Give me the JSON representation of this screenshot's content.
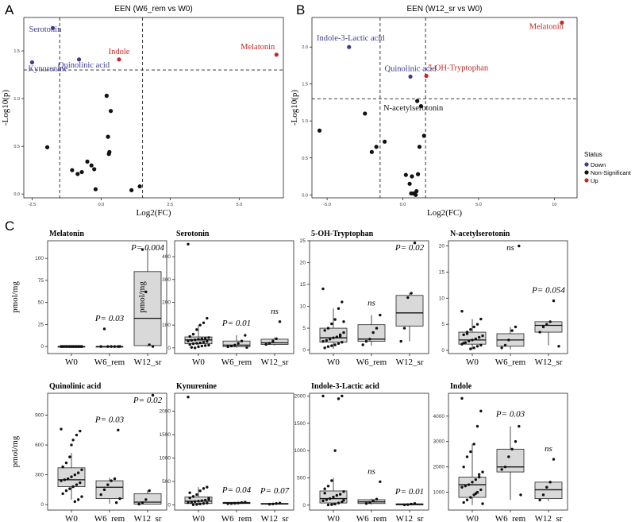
{
  "panel_letters": [
    "A",
    "B",
    "C"
  ],
  "colors": {
    "down": "#3b3b8f",
    "up": "#c62828",
    "ns": "#111111",
    "box_fill": "#d9d9d9"
  },
  "volcano_axes": {
    "xlabel": "Log2(FC)",
    "ylabel": "-Log10(p)"
  },
  "legend": {
    "title": "Status",
    "items": [
      {
        "label": "Down",
        "color": "#3b3b8f"
      },
      {
        "label": "Non-Significant",
        "color": "#111111"
      },
      {
        "label": "Up",
        "color": "#c62828"
      }
    ]
  },
  "boxplot_axes": {
    "ylabel": "pmol/mg",
    "groups": [
      "W0",
      "W6_rem",
      "W12_sr"
    ]
  },
  "chart_data": [
    {
      "type": "scatter",
      "title": "EEN (W6_rem vs W0)",
      "xlabel": "Log2(FC)",
      "ylabel": "-Log10(p)",
      "xlim": [
        -2.8,
        6.6
      ],
      "ylim": [
        -0.04,
        1.85
      ],
      "xticks": [
        {
          "v": -2.5,
          "t": "-2.5"
        },
        {
          "v": 0,
          "t": "0.0"
        },
        {
          "v": 2.5,
          "t": "2.5"
        },
        {
          "v": 5,
          "t": "5.0"
        }
      ],
      "yticks": [
        {
          "v": 0,
          "t": "0.0"
        },
        {
          "v": 0.5,
          "t": "0.5"
        },
        {
          "v": 1.0,
          "t": "1.0"
        },
        {
          "v": 1.5,
          "t": "1.5"
        }
      ],
      "hline": 1.3,
      "vlines": [
        -1.5,
        1.5
      ],
      "points": [
        {
          "x": -1.75,
          "y": 1.74,
          "s": "down",
          "label": "Serotonin"
        },
        {
          "x": -2.5,
          "y": 1.38,
          "s": "down",
          "label": "Kynurenine"
        },
        {
          "x": -0.8,
          "y": 1.41,
          "s": "down",
          "label": "Quinolinic acid"
        },
        {
          "x": 0.65,
          "y": 1.41,
          "s": "up",
          "label": "Indole"
        },
        {
          "x": 6.35,
          "y": 1.46,
          "s": "up",
          "label": "Melatonin"
        },
        {
          "x": -1.95,
          "y": 0.49,
          "s": "ns"
        },
        {
          "x": -1.05,
          "y": 0.25,
          "s": "ns"
        },
        {
          "x": -0.85,
          "y": 0.21,
          "s": "ns"
        },
        {
          "x": -0.7,
          "y": 0.23,
          "s": "ns"
        },
        {
          "x": -0.5,
          "y": 0.34,
          "s": "ns"
        },
        {
          "x": -0.35,
          "y": 0.3,
          "s": "ns"
        },
        {
          "x": -0.25,
          "y": 0.26,
          "s": "ns"
        },
        {
          "x": -0.2,
          "y": 0.05,
          "s": "ns"
        },
        {
          "x": 0.2,
          "y": 1.03,
          "s": "ns"
        },
        {
          "x": 0.35,
          "y": 0.87,
          "s": "ns"
        },
        {
          "x": 0.25,
          "y": 0.6,
          "s": "ns"
        },
        {
          "x": 0.3,
          "y": 0.44,
          "s": "ns"
        },
        {
          "x": 0.28,
          "y": 0.42,
          "s": "ns"
        },
        {
          "x": 1.1,
          "y": 0.04,
          "s": "ns"
        },
        {
          "x": 1.4,
          "y": 0.08,
          "s": "ns"
        }
      ]
    },
    {
      "type": "scatter",
      "title": "EEN (W12_sr vs W0)",
      "xlabel": "Log2(FC)",
      "ylabel": "-Log10(p)",
      "xlim": [
        -6,
        11.5
      ],
      "ylim": [
        -0.04,
        2.4
      ],
      "xticks": [
        {
          "v": -5,
          "t": "-5.0"
        },
        {
          "v": 0,
          "t": "0.0"
        },
        {
          "v": 5,
          "t": "5.0"
        },
        {
          "v": 10,
          "t": "10"
        }
      ],
      "yticks": [
        {
          "v": 0,
          "t": "0.0"
        },
        {
          "v": 0.5,
          "t": "0.5"
        },
        {
          "v": 1.0,
          "t": "1.0"
        },
        {
          "v": 1.5,
          "t": "1.5"
        },
        {
          "v": 2.0,
          "t": "2.0"
        }
      ],
      "hline": 1.3,
      "vlines": [
        -1.5,
        1.5
      ],
      "points": [
        {
          "x": -3.55,
          "y": 2.0,
          "s": "down",
          "label": "Indole-3-Lactic acid"
        },
        {
          "x": 0.5,
          "y": 1.6,
          "s": "down",
          "label": "Quinolinic acid"
        },
        {
          "x": 1.55,
          "y": 1.61,
          "s": "up",
          "label": "5-OH-Tryptophan"
        },
        {
          "x": 10.5,
          "y": 2.33,
          "s": "up",
          "label": "Melatonin"
        },
        {
          "x": 0.95,
          "y": 1.27,
          "s": "ns",
          "label": "N-acetylserotonin"
        },
        {
          "x": -5.5,
          "y": 0.87,
          "s": "ns"
        },
        {
          "x": -2.5,
          "y": 1.1,
          "s": "ns"
        },
        {
          "x": -2.05,
          "y": 0.58,
          "s": "ns"
        },
        {
          "x": -1.75,
          "y": 0.65,
          "s": "ns"
        },
        {
          "x": -1.2,
          "y": 0.72,
          "s": "ns"
        },
        {
          "x": 0.2,
          "y": 0.27,
          "s": "ns"
        },
        {
          "x": 0.45,
          "y": 0.15,
          "s": "ns"
        },
        {
          "x": 0.6,
          "y": 0.25,
          "s": "ns"
        },
        {
          "x": 0.55,
          "y": 0.02,
          "s": "ns"
        },
        {
          "x": 0.7,
          "y": 0.02,
          "s": "ns"
        },
        {
          "x": 0.9,
          "y": 0.05,
          "s": "ns"
        },
        {
          "x": 1.0,
          "y": 0.28,
          "s": "ns"
        },
        {
          "x": 0.85,
          "y": 0.0,
          "s": "ns"
        },
        {
          "x": 1.1,
          "y": 0.65,
          "s": "ns"
        },
        {
          "x": 1.4,
          "y": 0.8,
          "s": "ns"
        },
        {
          "x": 1.2,
          "y": 1.2,
          "s": "ns"
        }
      ]
    },
    {
      "type": "box",
      "title": "Melatonin",
      "ylabel": "pmol/mg",
      "ylim": [
        -8,
        120
      ],
      "yticks": [
        0,
        25,
        50,
        75,
        100
      ],
      "categories": [
        "W0",
        "W6_rem",
        "W12_sr"
      ],
      "boxes": [
        {
          "q1": 0,
          "med": 0,
          "q3": 0,
          "lo": 0,
          "hi": 0,
          "pts": [
            0,
            0,
            0,
            0,
            0,
            0,
            0,
            0,
            0,
            0,
            0,
            0,
            0,
            0,
            0,
            0,
            0,
            0,
            0,
            0,
            0,
            0,
            0,
            0
          ]
        },
        {
          "q1": 0,
          "med": 0,
          "q3": 0,
          "lo": 0,
          "hi": 0,
          "pts": [
            0,
            0,
            0,
            0,
            20,
            0,
            0
          ]
        },
        {
          "q1": 1,
          "med": 32,
          "q3": 85,
          "lo": 0,
          "hi": 112,
          "pts": [
            0,
            2,
            62,
            110
          ]
        }
      ],
      "annotations": [
        null,
        "P= 0.03",
        "P= 0.004"
      ]
    },
    {
      "type": "box",
      "title": "Serotonin",
      "ylabel": "pmol/mg",
      "ylim": [
        -25,
        470
      ],
      "yticks": [
        0,
        100,
        200,
        300,
        400
      ],
      "categories": [
        "W0",
        "W6_rem",
        "W12_sr"
      ],
      "boxes": [
        {
          "q1": 18,
          "med": 35,
          "q3": 48,
          "lo": 0,
          "hi": 100,
          "pts": [
            455,
            130,
            110,
            100,
            80,
            60,
            50,
            45,
            42,
            40,
            38,
            35,
            33,
            30,
            28,
            25,
            22,
            20,
            18,
            15,
            12,
            10,
            8,
            5,
            0,
            2
          ]
        },
        {
          "q1": 5,
          "med": 12,
          "q3": 30,
          "lo": 0,
          "hi": 55,
          "pts": [
            55,
            30,
            20,
            12,
            8,
            5,
            2
          ]
        },
        {
          "q1": 15,
          "med": 22,
          "q3": 38,
          "lo": 10,
          "hi": 45,
          "pts": [
            115,
            40,
            30,
            20,
            15
          ]
        }
      ],
      "annotations": [
        null,
        "P= 0.01",
        "ns"
      ]
    },
    {
      "type": "box",
      "title": "5-OH-Tryptophan",
      "ylabel": "",
      "ylim": [
        -0.8,
        25
      ],
      "yticks": [
        0,
        5,
        10,
        15,
        20,
        25
      ],
      "categories": [
        "W0",
        "W6_rem",
        "W12_sr"
      ],
      "boxes": [
        {
          "q1": 1.8,
          "med": 2.8,
          "q3": 5,
          "lo": 0.3,
          "hi": 9.5,
          "pts": [
            14,
            11,
            9.5,
            7,
            6,
            5,
            4.5,
            4,
            3.5,
            3,
            2.8,
            2.5,
            2.2,
            2,
            1.8,
            1.5,
            1.2,
            1,
            0.8,
            0.5,
            6.5,
            3.2
          ]
        },
        {
          "q1": 2,
          "med": 2.5,
          "q3": 5.8,
          "lo": 1,
          "hi": 8,
          "pts": [
            8,
            5,
            4,
            2.5,
            2,
            1.2
          ]
        },
        {
          "q1": 5.5,
          "med": 8.5,
          "q3": 12.5,
          "lo": 2,
          "hi": 13,
          "pts": [
            24.5,
            13,
            12,
            5,
            2
          ]
        }
      ],
      "annotations": [
        null,
        "ns",
        "P= 0.02"
      ]
    },
    {
      "type": "box",
      "title": "N-acetylserotonin",
      "ylabel": "",
      "ylim": [
        -0.6,
        21
      ],
      "yticks": [
        0,
        5,
        10,
        15,
        20
      ],
      "categories": [
        "W0",
        "W6_rem",
        "W12_sr"
      ],
      "boxes": [
        {
          "q1": 1.2,
          "med": 2,
          "q3": 3.5,
          "lo": 0.2,
          "hi": 6,
          "pts": [
            7.5,
            6,
            5,
            4.5,
            4,
            3.5,
            3,
            2.8,
            2.5,
            2.2,
            2,
            1.8,
            1.5,
            1.2,
            1,
            0.8,
            0.5,
            0.3,
            3.2,
            1.4
          ]
        },
        {
          "q1": 0.8,
          "med": 2,
          "q3": 3.2,
          "lo": 0.2,
          "hi": 4.5,
          "pts": [
            20,
            4.5,
            3.8,
            2,
            1,
            0.5
          ]
        },
        {
          "q1": 3.5,
          "med": 4.8,
          "q3": 5.5,
          "lo": 1,
          "hi": 5.5,
          "pts": [
            9.5,
            5.5,
            5,
            4.5,
            3.5,
            0.8
          ]
        }
      ],
      "annotations": [
        null,
        "ns",
        "P= 0.054"
      ]
    },
    {
      "type": "box",
      "title": "Quinolinic acid",
      "ylabel": "pmol/mg",
      "ylim": [
        -55,
        1120
      ],
      "yticks": [
        0,
        300,
        600,
        900
      ],
      "categories": [
        "W0",
        "W6_rem",
        "W12_sr"
      ],
      "boxes": [
        {
          "q1": 180,
          "med": 250,
          "q3": 370,
          "lo": 50,
          "hi": 520,
          "pts": [
            760,
            740,
            700,
            650,
            480,
            420,
            380,
            350,
            320,
            300,
            280,
            260,
            250,
            240,
            220,
            200,
            180,
            160,
            140,
            110,
            80,
            50,
            30,
            600
          ]
        },
        {
          "q1": 60,
          "med": 175,
          "q3": 240,
          "lo": 10,
          "hi": 270,
          "pts": [
            750,
            260,
            240,
            200,
            150,
            100,
            60,
            20
          ]
        },
        {
          "q1": 5,
          "med": 25,
          "q3": 110,
          "lo": 0,
          "hi": 140,
          "pts": [
            1100,
            140,
            50,
            20,
            5
          ]
        }
      ],
      "annotations": [
        null,
        "P= 0.03",
        "P= 0.02"
      ]
    },
    {
      "type": "box",
      "title": "Kynurenine",
      "ylabel": "",
      "ylim": [
        -110,
        2380
      ],
      "yticks": [
        0,
        500,
        1000,
        1500,
        2000
      ],
      "categories": [
        "W0",
        "W6_rem",
        "W12_sr"
      ],
      "boxes": [
        {
          "q1": 30,
          "med": 80,
          "q3": 170,
          "lo": 0,
          "hi": 380,
          "pts": [
            2300,
            380,
            350,
            300,
            220,
            180,
            150,
            120,
            100,
            90,
            80,
            70,
            60,
            50,
            40,
            30,
            20,
            10,
            5,
            260,
            140
          ]
        },
        {
          "q1": 30,
          "med": 40,
          "q3": 55,
          "lo": 20,
          "hi": 60,
          "pts": [
            60,
            50,
            40,
            35,
            30,
            25
          ]
        },
        {
          "q1": 15,
          "med": 22,
          "q3": 32,
          "lo": 10,
          "hi": 40,
          "pts": [
            40,
            30,
            20,
            15
          ]
        }
      ],
      "annotations": [
        null,
        "P= 0.04",
        "P= 0.07"
      ]
    },
    {
      "type": "box",
      "title": "Indole-3-Lactic acid",
      "ylabel": "",
      "ylim": [
        -90,
        2050
      ],
      "yticks": [
        0,
        500,
        1000,
        1500,
        2000
      ],
      "categories": [
        "W0",
        "W6_rem",
        "W12_sr"
      ],
      "boxes": [
        {
          "q1": 40,
          "med": 120,
          "q3": 260,
          "lo": 0,
          "hi": 500,
          "pts": [
            2000,
            2000,
            1950,
            1000,
            450,
            350,
            300,
            250,
            200,
            180,
            150,
            120,
            100,
            80,
            60,
            40,
            20,
            10,
            5,
            220,
            90
          ]
        },
        {
          "q1": 30,
          "med": 60,
          "q3": 100,
          "lo": 10,
          "hi": 120,
          "pts": [
            430,
            110,
            80,
            50,
            30
          ]
        },
        {
          "q1": 5,
          "med": 15,
          "q3": 25,
          "lo": 0,
          "hi": 30,
          "pts": [
            30,
            20,
            10,
            5
          ]
        }
      ],
      "annotations": [
        null,
        "ns",
        "P= 0.01"
      ]
    },
    {
      "type": "box",
      "title": "Indole",
      "ylabel": "",
      "ylim": [
        300,
        4900
      ],
      "yticks": [
        1000,
        2000,
        3000,
        4000
      ],
      "categories": [
        "W0",
        "W6_rem",
        "W12_sr"
      ],
      "boxes": [
        {
          "q1": 800,
          "med": 1300,
          "q3": 1600,
          "lo": 500,
          "hi": 2900,
          "pts": [
            4700,
            4200,
            3600,
            2900,
            2600,
            2400,
            2000,
            1800,
            1600,
            1500,
            1400,
            1300,
            1250,
            1200,
            1100,
            1000,
            900,
            800,
            700,
            600,
            550,
            1700,
            950
          ]
        },
        {
          "q1": 1800,
          "med": 2000,
          "q3": 2700,
          "lo": 700,
          "hi": 3600,
          "pts": [
            3600,
            3000,
            2700,
            2400,
            2000,
            1900,
            900
          ]
        },
        {
          "q1": 750,
          "med": 1100,
          "q3": 1400,
          "lo": 650,
          "hi": 1400,
          "pts": [
            2300,
            1400,
            1200,
            900,
            700
          ]
        }
      ],
      "annotations": [
        null,
        "P= 0.03",
        "ns"
      ]
    }
  ]
}
